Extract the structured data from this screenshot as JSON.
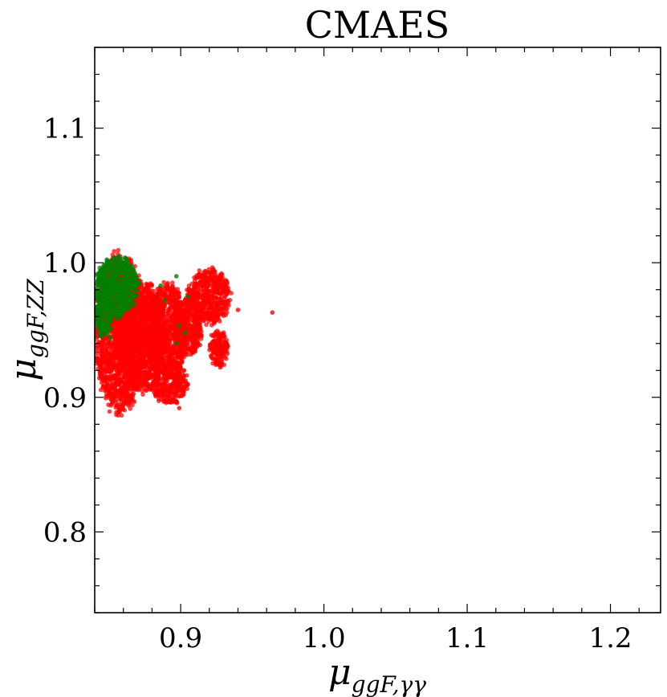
{
  "chart_data": {
    "type": "scatter",
    "title": "CMAES",
    "xlabel": {
      "symbol": "μ",
      "subscript": "ggF,γγ"
    },
    "ylabel": {
      "symbol": "μ",
      "subscript": "ggF,ZZ"
    },
    "xlim": [
      0.84,
      1.235
    ],
    "ylim": [
      0.74,
      1.16
    ],
    "xticks": [
      0.9,
      1.0,
      1.1,
      1.2
    ],
    "xtick_labels": [
      "0.9",
      "1.0",
      "1.1",
      "1.2"
    ],
    "yticks": [
      0.8,
      0.9,
      1.0,
      1.1
    ],
    "ytick_labels": [
      "0.8",
      "0.9",
      "1.0",
      "1.1"
    ],
    "grid": false,
    "legend": "none",
    "series": [
      {
        "color": "#ff0000",
        "regions": [
          {
            "xmin": 0.84,
            "xmax": 0.875,
            "ymin": 0.89,
            "ymax": 1.005
          },
          {
            "xmin": 0.855,
            "xmax": 0.89,
            "ymin": 0.905,
            "ymax": 0.985
          },
          {
            "xmin": 0.875,
            "xmax": 0.905,
            "ymin": 0.915,
            "ymax": 0.985
          },
          {
            "xmin": 0.895,
            "xmax": 0.915,
            "ymin": 0.93,
            "ymax": 0.975
          },
          {
            "xmin": 0.905,
            "xmax": 0.935,
            "ymin": 0.955,
            "ymax": 0.995
          },
          {
            "xmin": 0.88,
            "xmax": 0.905,
            "ymin": 0.895,
            "ymax": 0.925
          },
          {
            "xmin": 0.92,
            "xmax": 0.933,
            "ymin": 0.922,
            "ymax": 0.95
          }
        ],
        "points": [
          [
            0.964,
            0.963
          ],
          [
            0.94,
            0.965
          ],
          [
            0.899,
            0.892
          ],
          [
            0.887,
            0.906
          ]
        ]
      },
      {
        "color": "#008000",
        "regions": [
          {
            "xmin": 0.84,
            "xmax": 0.87,
            "ymin": 0.96,
            "ymax": 1.005
          },
          {
            "xmin": 0.84,
            "xmax": 0.852,
            "ymin": 0.945,
            "ymax": 0.975
          }
        ],
        "points": [
          [
            0.897,
            0.99
          ],
          [
            0.899,
            0.953
          ],
          [
            0.903,
            0.948
          ],
          [
            0.897,
            0.94
          ],
          [
            0.889,
            0.972
          ],
          [
            0.886,
            0.983
          ],
          [
            0.905,
            0.975
          ],
          [
            0.851,
            0.944
          ]
        ]
      }
    ]
  }
}
